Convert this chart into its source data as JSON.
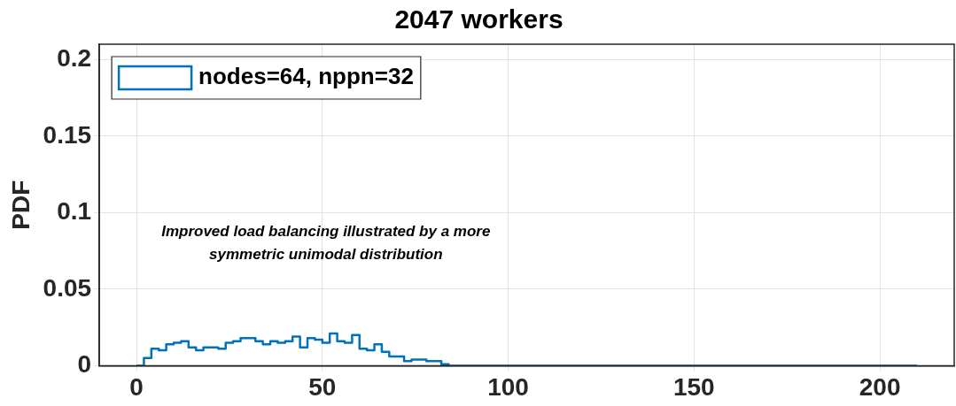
{
  "chart_data": {
    "type": "histogram",
    "title": "2047 workers",
    "ylabel": "PDF",
    "annotations": [
      "Improved load balancing illustrated by a more symmetric unimodal distribution"
    ],
    "bins": [
      0,
      2,
      4,
      6,
      8,
      10,
      12,
      14,
      16,
      18,
      20,
      22,
      24,
      26,
      28,
      30,
      32,
      34,
      36,
      38,
      40,
      42,
      44,
      46,
      48,
      50,
      52,
      54,
      56,
      58,
      60,
      62,
      64,
      66,
      68,
      70,
      72,
      74,
      76,
      78,
      80,
      82,
      84,
      86,
      88,
      90,
      92,
      94,
      96,
      98,
      100,
      102,
      104,
      106,
      108,
      110,
      112,
      114,
      116,
      118,
      120,
      122,
      124,
      126,
      128,
      130,
      132,
      134,
      136,
      138,
      140,
      142,
      144,
      146,
      148,
      150,
      152,
      154,
      156,
      158,
      160,
      162,
      164,
      166,
      168,
      170,
      172,
      174,
      176,
      178,
      180,
      182,
      184,
      186,
      188,
      190,
      192,
      194,
      196,
      198,
      200,
      202,
      204,
      206,
      208,
      210
    ],
    "series": [
      {
        "name": "nodes=64, nppn=32",
        "color": "#0072bd",
        "values": [
          0,
          0.005,
          0.011,
          0.01,
          0.014,
          0.015,
          0.016,
          0.012,
          0.01,
          0.012,
          0.012,
          0.011,
          0.015,
          0.016,
          0.018,
          0.018,
          0.016,
          0.014,
          0.016,
          0.015,
          0.016,
          0.019,
          0.012,
          0.018,
          0.017,
          0.015,
          0.021,
          0.016,
          0.015,
          0.02,
          0.011,
          0.01,
          0.014,
          0.009,
          0.006,
          0.006,
          0.003,
          0.004,
          0.004,
          0.003,
          0.003,
          0.001,
          0,
          0,
          0,
          0,
          0,
          0,
          0,
          0,
          0,
          0,
          0,
          0,
          0,
          0,
          0,
          0,
          0,
          0,
          0,
          0,
          0,
          0,
          0,
          0,
          0,
          0,
          0,
          0,
          0,
          0,
          0,
          0,
          0,
          0,
          0,
          0,
          0,
          0,
          0,
          0,
          0,
          0,
          0,
          0,
          0,
          0,
          0,
          0,
          0,
          0,
          0,
          0,
          0,
          0,
          0,
          0,
          0,
          0,
          0,
          0,
          0,
          0,
          0
        ]
      }
    ],
    "xlim": [
      -10,
      220
    ],
    "xticks": [
      0,
      50,
      100,
      150,
      200
    ],
    "ylim": [
      0,
      0.21
    ],
    "yticks": [
      0,
      0.05,
      0.1,
      0.15,
      0.2
    ],
    "grid": true,
    "legend": "top left"
  }
}
